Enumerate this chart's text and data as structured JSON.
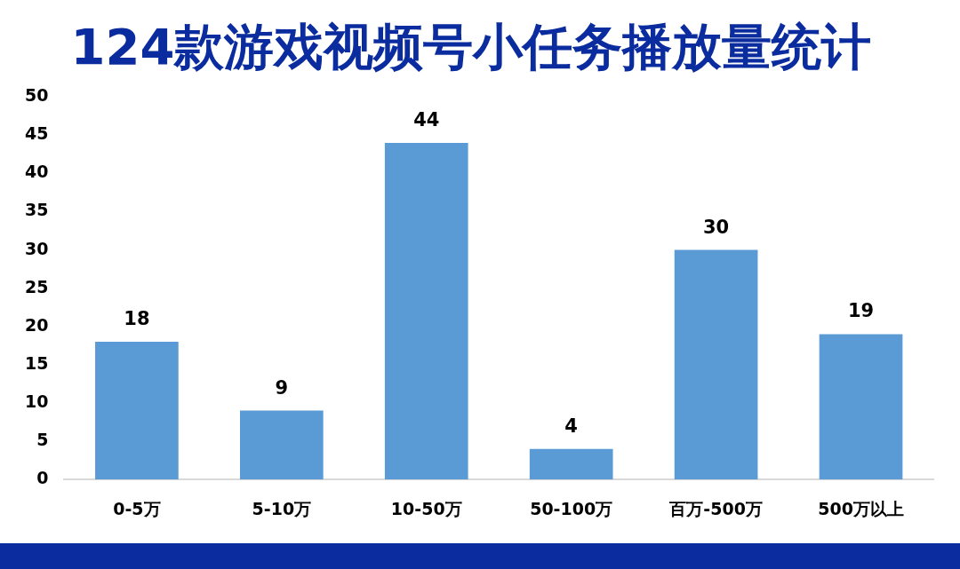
{
  "chart_data": {
    "type": "bar",
    "title": "124款游戏视频号小任务播放量统计",
    "categories": [
      "0-5万",
      "5-10万",
      "10-50万",
      "50-100万",
      "百万-500万",
      "500万以上"
    ],
    "values": [
      18,
      9,
      44,
      4,
      30,
      19
    ],
    "color": "#5b9bd5",
    "ylim": [
      0,
      50
    ],
    "yticks": [
      0,
      5,
      10,
      15,
      20,
      25,
      30,
      35,
      40,
      45,
      50
    ],
    "grid": false,
    "data_labels": true
  }
}
